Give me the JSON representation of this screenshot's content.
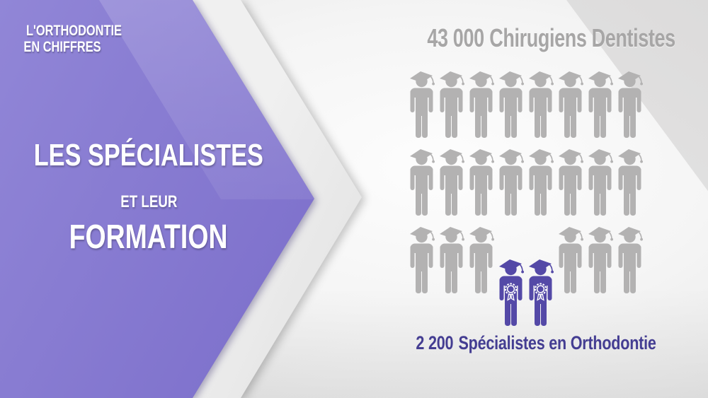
{
  "slide": {
    "kicker": {
      "line1": "L'ORTHODONTIE",
      "line2": "EN CHIFFRES"
    },
    "title": {
      "line1": "LES SPÉCIALISTES",
      "line2": "ET LEUR",
      "line3": "FORMATION"
    }
  },
  "infographic": {
    "total": {
      "value": "43 000",
      "label": "Chirugiens Dentistes"
    },
    "specialists": {
      "value": "2 200",
      "label": "Spécialistes en Orthodontie"
    },
    "grid": {
      "columns": 8,
      "rows": 3,
      "total_icons": 24,
      "gray_icons": 22,
      "purple_icons": 2,
      "specialist_cells": [
        {
          "row": 2,
          "col": 3
        },
        {
          "row": 2,
          "col": 4
        }
      ]
    }
  },
  "colors": {
    "panel_purple": "#8073cd",
    "panel_purple_light": "#9186d7",
    "panel_purple_dark": "#6c5dbf",
    "dentist_gray": "#b3b2b2",
    "specialist_purple": "#5449a7",
    "total_text": "#a7a6a6",
    "caption_text": "#443d92",
    "echo_gray": "#d9d9d9"
  },
  "chart_data": {
    "type": "pictograph",
    "title": "43 000 Chirugiens Dentistes",
    "caption": "2 200 Spécialistes en Orthodontie",
    "categories": [
      "Chirugiens Dentistes",
      "Spécialistes en Orthodontie"
    ],
    "values": [
      43000,
      2200
    ],
    "icon_layout": {
      "rows": 3,
      "columns": 8,
      "highlighted_icons": 2,
      "total_icons": 24
    },
    "legend_position": "none",
    "notes": "Grid of graduate pictograms; 2 highlighted purple figures with award rosettes represent the orthodontic specialists subset"
  }
}
